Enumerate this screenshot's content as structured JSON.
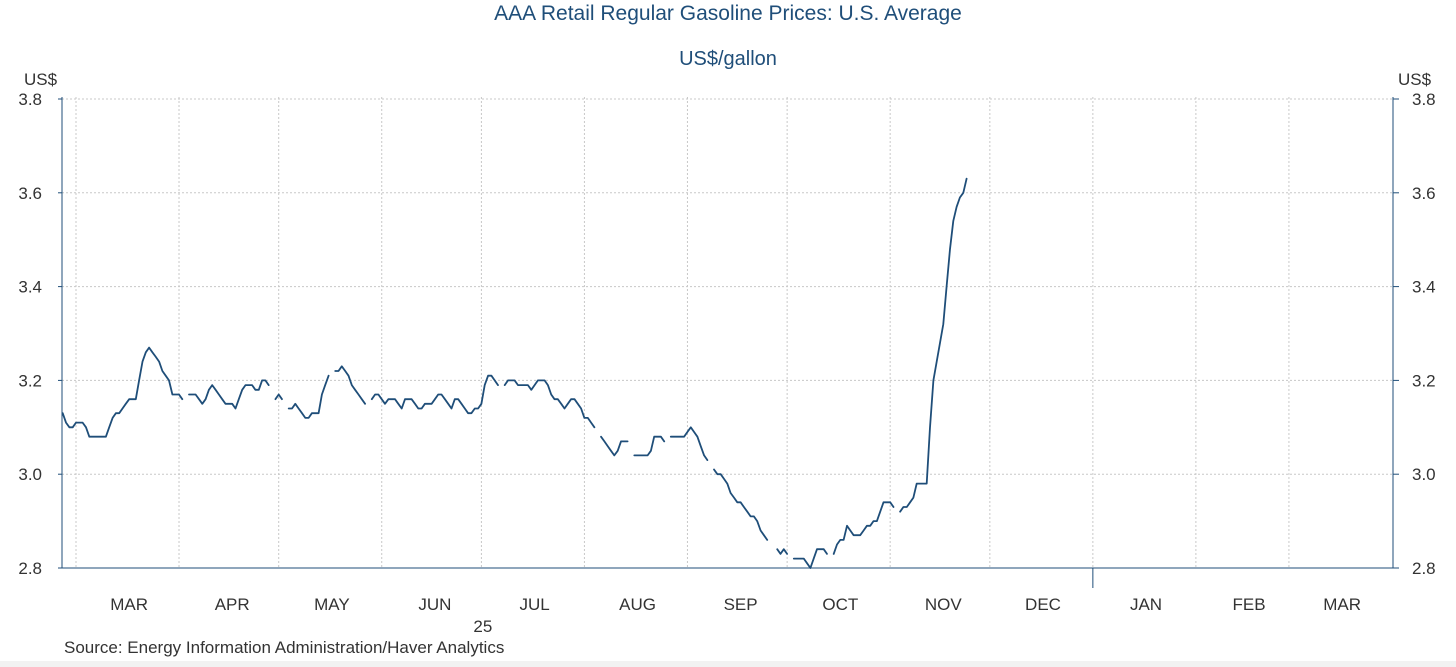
{
  "chart_data": {
    "type": "line",
    "title": "AAA Retail Regular Gasoline Prices: U.S. Average",
    "subtitle": "US$/gallon",
    "left_axis_label": "US$",
    "right_axis_label": "US$",
    "ylim": [
      2.8,
      3.8
    ],
    "yticks": [
      2.8,
      3.0,
      3.2,
      3.4,
      3.6,
      3.8
    ],
    "ytick_labels": [
      "2.8",
      "3.0",
      "3.2",
      "3.4",
      "3.6",
      "3.8"
    ],
    "xlim_days": [
      0,
      390
    ],
    "month_labels": [
      {
        "label": "MAR",
        "day": 16
      },
      {
        "label": "APR",
        "day": 47
      },
      {
        "label": "MAY",
        "day": 77
      },
      {
        "label": "JUN",
        "day": 108
      },
      {
        "label": "JUL",
        "day": 138
      },
      {
        "label": "AUG",
        "day": 169
      },
      {
        "label": "SEP",
        "day": 200
      },
      {
        "label": "OCT",
        "day": 230
      },
      {
        "label": "NOV",
        "day": 261
      },
      {
        "label": "DEC",
        "day": 291
      },
      {
        "label": "JAN",
        "day": 322
      },
      {
        "label": "FEB",
        "day": 353
      },
      {
        "label": "MAR",
        "day": 381
      }
    ],
    "gridline_days": [
      0,
      31,
      61,
      92,
      122,
      153,
      184,
      214,
      245,
      275,
      306,
      337,
      365
    ],
    "year_label": {
      "label": "25",
      "day": 108
    },
    "year_boundary_day": 306,
    "series": [
      {
        "name": "AAA Retail Regular Gasoline Price, U.S. Average",
        "color": "#1f4e79",
        "segments": [
          [
            [
              -4,
              3.13
            ],
            [
              -3,
              3.11
            ],
            [
              -2,
              3.1
            ],
            [
              -1,
              3.1
            ],
            [
              0,
              3.11
            ],
            [
              1,
              3.11
            ],
            [
              2,
              3.11
            ],
            [
              3,
              3.1
            ],
            [
              4,
              3.08
            ],
            [
              5,
              3.08
            ],
            [
              6,
              3.08
            ],
            [
              7,
              3.08
            ],
            [
              8,
              3.08
            ],
            [
              9,
              3.08
            ],
            [
              10,
              3.1
            ],
            [
              11,
              3.12
            ],
            [
              12,
              3.13
            ],
            [
              13,
              3.13
            ],
            [
              14,
              3.14
            ],
            [
              15,
              3.15
            ],
            [
              16,
              3.16
            ],
            [
              17,
              3.16
            ],
            [
              18,
              3.16
            ],
            [
              19,
              3.2
            ],
            [
              20,
              3.24
            ],
            [
              21,
              3.26
            ],
            [
              22,
              3.27
            ],
            [
              23,
              3.26
            ],
            [
              24,
              3.25
            ],
            [
              25,
              3.24
            ],
            [
              26,
              3.22
            ],
            [
              27,
              3.21
            ],
            [
              28,
              3.2
            ],
            [
              29,
              3.17
            ],
            [
              30,
              3.17
            ],
            [
              31,
              3.17
            ],
            [
              32,
              3.16
            ]
          ],
          [
            [
              34,
              3.17
            ],
            [
              35,
              3.17
            ],
            [
              36,
              3.17
            ],
            [
              37,
              3.16
            ],
            [
              38,
              3.15
            ],
            [
              39,
              3.16
            ],
            [
              40,
              3.18
            ],
            [
              41,
              3.19
            ],
            [
              42,
              3.18
            ],
            [
              43,
              3.17
            ],
            [
              44,
              3.16
            ],
            [
              45,
              3.15
            ],
            [
              46,
              3.15
            ],
            [
              47,
              3.15
            ],
            [
              48,
              3.14
            ],
            [
              49,
              3.16
            ],
            [
              50,
              3.18
            ],
            [
              51,
              3.19
            ],
            [
              52,
              3.19
            ],
            [
              53,
              3.19
            ],
            [
              54,
              3.18
            ],
            [
              55,
              3.18
            ],
            [
              56,
              3.2
            ],
            [
              57,
              3.2
            ],
            [
              58,
              3.19
            ]
          ],
          [
            [
              60,
              3.16
            ],
            [
              61,
              3.17
            ],
            [
              62,
              3.16
            ]
          ],
          [
            [
              64,
              3.14
            ],
            [
              65,
              3.14
            ],
            [
              66,
              3.15
            ],
            [
              67,
              3.14
            ],
            [
              68,
              3.13
            ],
            [
              69,
              3.12
            ],
            [
              70,
              3.12
            ],
            [
              71,
              3.13
            ],
            [
              72,
              3.13
            ],
            [
              73,
              3.13
            ],
            [
              74,
              3.17
            ],
            [
              75,
              3.19
            ],
            [
              76,
              3.21
            ]
          ],
          [
            [
              78,
              3.22
            ],
            [
              79,
              3.22
            ],
            [
              80,
              3.23
            ],
            [
              81,
              3.22
            ],
            [
              82,
              3.21
            ],
            [
              83,
              3.19
            ],
            [
              84,
              3.18
            ],
            [
              85,
              3.17
            ],
            [
              86,
              3.16
            ],
            [
              87,
              3.15
            ]
          ],
          [
            [
              89,
              3.16
            ],
            [
              90,
              3.17
            ],
            [
              91,
              3.17
            ],
            [
              92,
              3.16
            ],
            [
              93,
              3.15
            ],
            [
              94,
              3.16
            ],
            [
              95,
              3.16
            ],
            [
              96,
              3.16
            ],
            [
              97,
              3.15
            ],
            [
              98,
              3.14
            ],
            [
              99,
              3.16
            ],
            [
              100,
              3.16
            ],
            [
              101,
              3.16
            ],
            [
              102,
              3.15
            ],
            [
              103,
              3.14
            ],
            [
              104,
              3.14
            ],
            [
              105,
              3.15
            ],
            [
              106,
              3.15
            ],
            [
              107,
              3.15
            ],
            [
              108,
              3.16
            ],
            [
              109,
              3.17
            ],
            [
              110,
              3.17
            ],
            [
              111,
              3.16
            ],
            [
              112,
              3.15
            ],
            [
              113,
              3.14
            ],
            [
              114,
              3.16
            ],
            [
              115,
              3.16
            ],
            [
              116,
              3.15
            ],
            [
              117,
              3.14
            ],
            [
              118,
              3.13
            ],
            [
              119,
              3.13
            ],
            [
              120,
              3.14
            ],
            [
              121,
              3.14
            ],
            [
              122,
              3.15
            ],
            [
              123,
              3.19
            ],
            [
              124,
              3.21
            ],
            [
              125,
              3.21
            ],
            [
              126,
              3.2
            ],
            [
              127,
              3.19
            ]
          ],
          [
            [
              129,
              3.19
            ],
            [
              130,
              3.2
            ],
            [
              131,
              3.2
            ],
            [
              132,
              3.2
            ],
            [
              133,
              3.19
            ],
            [
              134,
              3.19
            ],
            [
              135,
              3.19
            ],
            [
              136,
              3.19
            ],
            [
              137,
              3.18
            ],
            [
              138,
              3.19
            ],
            [
              139,
              3.2
            ],
            [
              140,
              3.2
            ],
            [
              141,
              3.2
            ],
            [
              142,
              3.19
            ],
            [
              143,
              3.17
            ],
            [
              144,
              3.16
            ],
            [
              145,
              3.16
            ],
            [
              146,
              3.15
            ],
            [
              147,
              3.14
            ],
            [
              148,
              3.15
            ],
            [
              149,
              3.16
            ],
            [
              150,
              3.16
            ],
            [
              151,
              3.15
            ],
            [
              152,
              3.14
            ],
            [
              153,
              3.12
            ],
            [
              154,
              3.12
            ],
            [
              155,
              3.11
            ],
            [
              156,
              3.1
            ]
          ],
          [
            [
              158,
              3.08
            ],
            [
              159,
              3.07
            ],
            [
              160,
              3.06
            ],
            [
              161,
              3.05
            ],
            [
              162,
              3.04
            ],
            [
              163,
              3.05
            ],
            [
              164,
              3.07
            ],
            [
              165,
              3.07
            ],
            [
              166,
              3.07
            ]
          ],
          [
            [
              168,
              3.04
            ],
            [
              169,
              3.04
            ],
            [
              170,
              3.04
            ],
            [
              171,
              3.04
            ],
            [
              172,
              3.04
            ],
            [
              173,
              3.05
            ],
            [
              174,
              3.08
            ],
            [
              175,
              3.08
            ],
            [
              176,
              3.08
            ],
            [
              177,
              3.07
            ]
          ],
          [
            [
              179,
              3.08
            ],
            [
              180,
              3.08
            ],
            [
              181,
              3.08
            ],
            [
              182,
              3.08
            ],
            [
              183,
              3.08
            ],
            [
              184,
              3.09
            ],
            [
              185,
              3.1
            ],
            [
              186,
              3.09
            ],
            [
              187,
              3.08
            ],
            [
              188,
              3.06
            ],
            [
              189,
              3.04
            ],
            [
              190,
              3.03
            ]
          ],
          [
            [
              192,
              3.01
            ],
            [
              193,
              3.0
            ],
            [
              194,
              3.0
            ],
            [
              195,
              2.99
            ],
            [
              196,
              2.98
            ],
            [
              197,
              2.96
            ],
            [
              198,
              2.95
            ],
            [
              199,
              2.94
            ],
            [
              200,
              2.94
            ],
            [
              201,
              2.93
            ],
            [
              202,
              2.92
            ],
            [
              203,
              2.91
            ],
            [
              204,
              2.91
            ],
            [
              205,
              2.9
            ],
            [
              206,
              2.88
            ],
            [
              207,
              2.87
            ],
            [
              208,
              2.86
            ]
          ],
          [
            [
              211,
              2.84
            ],
            [
              212,
              2.83
            ],
            [
              213,
              2.84
            ],
            [
              214,
              2.83
            ]
          ],
          [
            [
              216,
              2.82
            ],
            [
              217,
              2.82
            ],
            [
              218,
              2.82
            ],
            [
              219,
              2.82
            ],
            [
              220,
              2.81
            ],
            [
              221,
              2.8
            ],
            [
              222,
              2.82
            ],
            [
              223,
              2.84
            ],
            [
              224,
              2.84
            ],
            [
              225,
              2.84
            ],
            [
              226,
              2.83
            ]
          ],
          [
            [
              228,
              2.83
            ],
            [
              229,
              2.85
            ],
            [
              230,
              2.86
            ],
            [
              231,
              2.86
            ],
            [
              232,
              2.89
            ],
            [
              233,
              2.88
            ],
            [
              234,
              2.87
            ],
            [
              235,
              2.87
            ],
            [
              236,
              2.87
            ],
            [
              237,
              2.88
            ],
            [
              238,
              2.89
            ],
            [
              239,
              2.89
            ],
            [
              240,
              2.9
            ],
            [
              241,
              2.9
            ],
            [
              242,
              2.92
            ],
            [
              243,
              2.94
            ],
            [
              244,
              2.94
            ],
            [
              245,
              2.94
            ],
            [
              246,
              2.93
            ]
          ],
          [
            [
              248,
              2.92
            ],
            [
              249,
              2.93
            ],
            [
              250,
              2.93
            ],
            [
              251,
              2.94
            ],
            [
              252,
              2.95
            ],
            [
              253,
              2.98
            ],
            [
              254,
              2.98
            ],
            [
              255,
              2.98
            ],
            [
              256,
              2.98
            ],
            [
              257,
              3.1
            ],
            [
              258,
              3.2
            ],
            [
              259,
              3.24
            ],
            [
              260,
              3.28
            ],
            [
              261,
              3.32
            ],
            [
              262,
              3.4
            ],
            [
              263,
              3.48
            ],
            [
              264,
              3.54
            ],
            [
              265,
              3.57
            ],
            [
              266,
              3.59
            ],
            [
              267,
              3.6
            ],
            [
              268,
              3.63
            ]
          ]
        ]
      }
    ],
    "source": "Source:  Energy Information Administration/Haver Analytics"
  }
}
